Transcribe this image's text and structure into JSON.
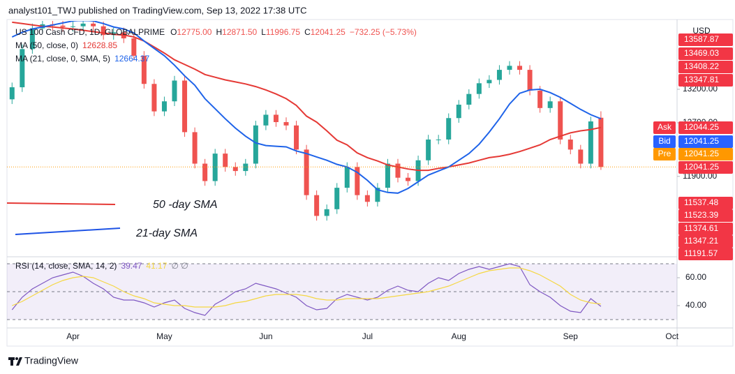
{
  "header": {
    "published": "analyst101_TWJ published on TradingView.com, Sep 13, 2022 17:38 UTC",
    "brand": "TradingView"
  },
  "chart_data": {
    "type": "candlestick",
    "symbol": "US 100 Cash CFD, 1D, GLOBALPRIME",
    "ohlc_legend": [
      {
        "key": "O",
        "text": "12775.00"
      },
      {
        "key": "H",
        "text": "12871.50"
      },
      {
        "key": "L",
        "text": "11996.75"
      },
      {
        "key": "C",
        "text": "12041.25"
      }
    ],
    "change": "−732.25 (−5.73%)",
    "currency": "USD",
    "up_color": "#26a69a",
    "down_color": "#ef5350",
    "legend_color": "#ef5350",
    "categories": [
      null,
      null,
      null,
      null,
      null,
      null,
      "Apr",
      null,
      null,
      null,
      null,
      null,
      null,
      null,
      null,
      "May",
      null,
      null,
      null,
      null,
      null,
      null,
      null,
      null,
      null,
      "Jun",
      null,
      null,
      null,
      null,
      null,
      null,
      null,
      null,
      null,
      "Jul",
      null,
      null,
      null,
      null,
      null,
      null,
      null,
      null,
      "Aug",
      null,
      null,
      null,
      null,
      null,
      null,
      null,
      null,
      null,
      null,
      "Sep",
      null,
      null,
      null,
      null,
      null,
      null,
      null,
      null,
      null,
      "Oct"
    ],
    "open": [
      13050,
      13230,
      13800,
      14110,
      14170,
      14150,
      14130,
      14140,
      14180,
      14140,
      14010,
      14050,
      13960,
      13700,
      13280,
      12870,
      13020,
      13330,
      12560,
      12090,
      11830,
      12240,
      12040,
      11980,
      12090,
      12660,
      12820,
      12710,
      12660,
      12300,
      11620,
      11310,
      11410,
      11730,
      12040,
      11620,
      11520,
      11730,
      12090,
      11880,
      11830,
      12140,
      12450,
      12450,
      12770,
      12970,
      13130,
      13290,
      13340,
      13490,
      13550,
      13490,
      13180,
      12920,
      13020,
      12450,
      12300,
      12090,
      12775,
      null,
      null,
      null,
      null,
      null,
      null,
      null
    ],
    "high": [
      13300,
      13870,
      14180,
      14240,
      14240,
      14220,
      14210,
      14250,
      14250,
      14210,
      14120,
      14120,
      14030,
      13770,
      13350,
      13090,
      13400,
      13400,
      12630,
      12160,
      12310,
      12310,
      12110,
      12160,
      12730,
      12890,
      12890,
      12780,
      12730,
      12370,
      11690,
      11480,
      11800,
      12110,
      12110,
      11690,
      11800,
      12160,
      12160,
      11950,
      12210,
      12520,
      12520,
      12840,
      13040,
      13200,
      13360,
      13410,
      13560,
      13620,
      13620,
      13560,
      13250,
      13090,
      13090,
      12520,
      12370,
      12790,
      12871.5,
      null,
      null,
      null,
      null,
      null,
      null,
      null
    ],
    "low": [
      12980,
      13160,
      13730,
      14040,
      14080,
      14060,
      14060,
      14070,
      14070,
      13940,
      13940,
      13890,
      13630,
      13210,
      12800,
      12800,
      12950,
      12490,
      12020,
      11760,
      11760,
      11970,
      11910,
      11910,
      12020,
      12590,
      12640,
      12590,
      12230,
      11550,
      11240,
      11240,
      11340,
      11660,
      11550,
      11450,
      11450,
      11660,
      11810,
      11760,
      11760,
      12070,
      12380,
      12380,
      12700,
      12900,
      13060,
      13220,
      13270,
      13420,
      13420,
      13110,
      12850,
      12850,
      12380,
      12230,
      12020,
      12020,
      11996.75,
      null,
      null,
      null,
      null,
      null,
      null,
      null
    ],
    "close": [
      13230,
      13800,
      14110,
      14170,
      14150,
      14130,
      14140,
      14180,
      14140,
      14010,
      14050,
      13960,
      13700,
      13280,
      12870,
      13020,
      13330,
      12560,
      12090,
      11830,
      12240,
      12040,
      11980,
      12090,
      12660,
      12820,
      12710,
      12660,
      12300,
      11620,
      11310,
      11410,
      11730,
      12040,
      11620,
      11520,
      11730,
      12090,
      11880,
      11830,
      12140,
      12450,
      12450,
      12770,
      12970,
      13130,
      13290,
      13340,
      13490,
      13550,
      13490,
      13180,
      12920,
      13020,
      12450,
      12300,
      12090,
      12720,
      12041.25,
      null,
      null,
      null,
      null,
      null,
      null,
      null
    ],
    "series": [
      {
        "name": "MA (50, close, 0)",
        "legend_value": "12628.85",
        "color": "#e53935",
        "values": [
          14200,
          14180,
          14160,
          14140,
          14130,
          14115,
          14100,
          14080,
          14060,
          14040,
          14020,
          14010,
          13980,
          13920,
          13830,
          13740,
          13640,
          13570,
          13500,
          13420,
          13380,
          13340,
          13310,
          13280,
          13240,
          13190,
          13130,
          13060,
          12960,
          12800,
          12710,
          12580,
          12440,
          12370,
          12250,
          12180,
          12130,
          12070,
          12040,
          12010,
          11990,
          11990,
          12020,
          12040,
          12070,
          12100,
          12140,
          12180,
          12200,
          12230,
          12270,
          12320,
          12370,
          12450,
          12500,
          12550,
          12580,
          12600,
          12630,
          null,
          null,
          null,
          null,
          null,
          null,
          null
        ]
      },
      {
        "name": "MA (21, close, 0, SMA, 5)",
        "legend_value": "12664.37",
        "color": "#1e63e9",
        "values": [
          13980,
          14050,
          14100,
          14130,
          14160,
          14190,
          14220,
          14230,
          14220,
          14180,
          14130,
          14100,
          14040,
          13920,
          13810,
          13700,
          13560,
          13400,
          13260,
          13060,
          12910,
          12760,
          12620,
          12500,
          12400,
          12360,
          12350,
          12340,
          12280,
          12240,
          12190,
          12140,
          12080,
          12040,
          11960,
          11840,
          11700,
          11660,
          11650,
          11720,
          11820,
          11920,
          11980,
          12040,
          12140,
          12240,
          12380,
          12560,
          12760,
          12980,
          13140,
          13190,
          13200,
          13150,
          13080,
          12990,
          12900,
          12820,
          12760,
          null,
          null,
          null,
          null,
          null,
          null,
          null
        ]
      }
    ],
    "ylim": [
      10700,
      14220
    ],
    "yticks": [
      {
        "value": 13200,
        "label": "13200.00"
      },
      {
        "value": 12700,
        "label": "12700.00"
      },
      {
        "value": 11900,
        "label": "11900.00"
      }
    ],
    "last_line_color": "#ff9800",
    "price_labels": [
      {
        "value": 13587.87,
        "color": "#f23645"
      },
      {
        "value": 13469.03,
        "color": "#f23645"
      },
      {
        "value": 13408.22,
        "color": "#f23645"
      },
      {
        "value": 13347.81,
        "color": "#f23645"
      },
      {
        "name": "Ask",
        "value": 12044.25,
        "color": "#f23645"
      },
      {
        "name": "Bid",
        "value": 12041.25,
        "color": "#2962ff"
      },
      {
        "name": "Pre",
        "value": 12041.25,
        "color": "#ff9800"
      },
      {
        "value": 12041.25,
        "color": "#f23645"
      },
      {
        "value": 11537.48,
        "color": "#f23645"
      },
      {
        "value": 11523.39,
        "color": "#f23645"
      },
      {
        "value": 11374.61,
        "color": "#f23645"
      },
      {
        "value": 11347.21,
        "color": "#f23645"
      },
      {
        "value": 11191.57,
        "color": "#f23645"
      }
    ],
    "annotations": [
      {
        "text": "50 -day SMA",
        "color": "#e53935"
      },
      {
        "text": "21-day SMA",
        "color": "#1e53e5"
      }
    ],
    "rsi": {
      "title": "RSI (14, close, SMA, 14, 2)",
      "extra": "∅ ∅",
      "ylim": [
        24,
        75
      ],
      "yticks": [
        {
          "value": 60,
          "label": "60.00"
        },
        {
          "value": 40,
          "label": "40.00"
        }
      ],
      "levels": [
        70,
        50,
        30
      ],
      "band": [
        30,
        70
      ],
      "band_color": "#7e57c2",
      "series": [
        {
          "legend_value": "39.47",
          "color": "#7e57c2",
          "values": [
            37,
            46,
            52,
            56,
            60,
            62,
            64,
            61,
            56,
            52,
            46,
            44,
            44,
            42,
            39,
            42,
            44,
            38,
            35,
            33,
            41,
            45,
            50,
            52,
            56,
            54,
            52,
            49,
            46,
            40,
            37,
            38,
            45,
            48,
            46,
            44,
            46,
            51,
            54,
            51,
            50,
            56,
            60,
            58,
            63,
            66,
            68,
            66,
            68,
            70,
            68,
            55,
            50,
            46,
            40,
            36,
            35,
            45,
            39.47,
            null,
            null,
            null,
            null,
            null,
            null,
            null
          ]
        },
        {
          "legend_value": "41.17",
          "color": "#f5d742",
          "values": [
            40,
            43,
            47,
            51,
            55,
            58,
            60,
            61,
            60,
            57,
            54,
            50,
            47,
            45,
            42,
            41,
            40,
            40,
            39,
            39,
            39,
            40,
            42,
            43,
            45,
            47,
            48,
            48,
            48,
            47,
            45,
            44,
            44,
            45,
            45,
            45,
            45,
            46,
            47,
            48,
            49,
            50,
            52,
            54,
            57,
            60,
            63,
            65,
            66,
            67,
            67,
            65,
            62,
            58,
            54,
            48,
            44,
            42,
            41.17,
            null,
            null,
            null,
            null,
            null,
            null,
            null
          ]
        }
      ]
    }
  }
}
